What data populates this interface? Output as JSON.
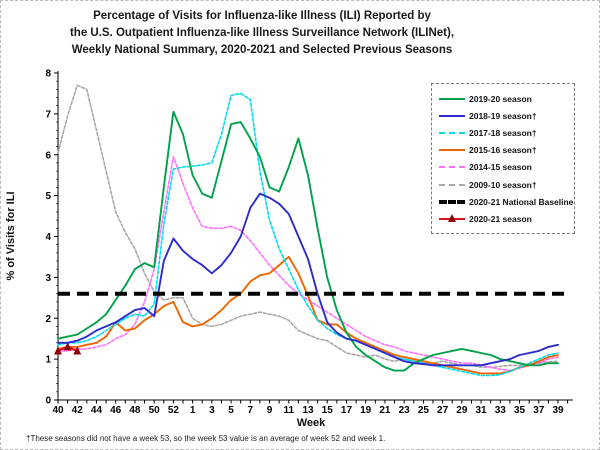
{
  "title": {
    "line1": "Percentage of Visits for Influenza-like Illness (ILI) Reported by",
    "line2": "the U.S. Outpatient Influenza-like Illness Surveillance Network (ILINet),",
    "line3": "Weekly National Summary, 2020-2021 and Selected Previous Seasons"
  },
  "axes": {
    "x_label": "Week",
    "y_label": "% of Visits for ILI",
    "y_ticks": [
      "0",
      "1",
      "2",
      "3",
      "4",
      "5",
      "6",
      "7",
      "8"
    ],
    "ylim": [
      0,
      8
    ],
    "x_tick_labels": [
      "40",
      "42",
      "44",
      "46",
      "48",
      "50",
      "52",
      "1",
      "3",
      "5",
      "7",
      "9",
      "11",
      "13",
      "15",
      "17",
      "19",
      "21",
      "23",
      "25",
      "27",
      "29",
      "31",
      "33",
      "35",
      "37",
      "39"
    ]
  },
  "footnote": "†These seasons did not have a week 53, so the week 53 value is an average of week 52 and week 1.",
  "chart_data": {
    "type": "line",
    "x_unit": "MMWR week (week 40 of first year through week 39 of following year)",
    "weeks": [
      40,
      41,
      42,
      43,
      44,
      45,
      46,
      47,
      48,
      49,
      50,
      51,
      52,
      53,
      1,
      2,
      3,
      4,
      5,
      6,
      7,
      8,
      9,
      10,
      11,
      12,
      13,
      14,
      15,
      16,
      17,
      18,
      19,
      20,
      21,
      22,
      23,
      24,
      25,
      26,
      27,
      28,
      29,
      30,
      31,
      32,
      33,
      34,
      35,
      36,
      37,
      38,
      39
    ],
    "grid": false,
    "legend_position": "upper right",
    "baseline": {
      "label": "2020-21 National Baseline",
      "value": 2.6,
      "color": "#000000"
    },
    "series": [
      {
        "name": "2019-20 season",
        "color": "#00A14B",
        "line": "solid",
        "marker": "none",
        "values": [
          1.5,
          1.55,
          1.6,
          1.75,
          1.9,
          2.1,
          2.45,
          2.8,
          3.2,
          3.35,
          3.25,
          5.2,
          7.05,
          6.5,
          5.5,
          5.05,
          4.95,
          5.85,
          6.75,
          6.8,
          6.4,
          5.95,
          5.2,
          5.1,
          5.7,
          6.4,
          5.5,
          4.2,
          3.0,
          2.2,
          1.65,
          1.3,
          1.1,
          0.95,
          0.8,
          0.72,
          0.72,
          0.9,
          1.0,
          1.1,
          1.15,
          1.2,
          1.25,
          1.2,
          1.15,
          1.1,
          1.0,
          0.95,
          0.9,
          0.85,
          0.85,
          0.9,
          0.9
        ]
      },
      {
        "name": "2018-19 season†",
        "color": "#2B2BCC",
        "line": "solid",
        "marker": "none",
        "values": [
          1.4,
          1.4,
          1.45,
          1.55,
          1.7,
          1.8,
          1.9,
          2.05,
          2.2,
          2.25,
          2.05,
          3.4,
          3.95,
          3.65,
          3.45,
          3.3,
          3.1,
          3.3,
          3.6,
          4.0,
          4.7,
          5.05,
          4.95,
          4.8,
          4.55,
          4.0,
          3.45,
          2.6,
          1.9,
          1.65,
          1.5,
          1.45,
          1.35,
          1.25,
          1.15,
          1.05,
          0.95,
          0.9,
          0.88,
          0.85,
          0.85,
          0.85,
          0.85,
          0.85,
          0.85,
          0.9,
          0.95,
          1.0,
          1.1,
          1.15,
          1.2,
          1.3,
          1.35
        ]
      },
      {
        "name": "2017-18 season†",
        "color": "#00DDEE",
        "line": "dotted",
        "marker": "none",
        "values": [
          1.35,
          1.4,
          1.4,
          1.45,
          1.55,
          1.7,
          1.85,
          2.0,
          2.1,
          2.05,
          2.35,
          4.3,
          5.65,
          5.7,
          5.72,
          5.75,
          5.8,
          6.5,
          7.45,
          7.5,
          7.35,
          5.6,
          4.4,
          3.7,
          3.2,
          2.7,
          2.3,
          1.95,
          1.75,
          1.6,
          1.5,
          1.45,
          1.35,
          1.25,
          1.15,
          1.05,
          1.0,
          0.95,
          0.9,
          0.85,
          0.8,
          0.75,
          0.7,
          0.65,
          0.6,
          0.6,
          0.62,
          0.7,
          0.8,
          0.9,
          1.0,
          1.1,
          1.15
        ]
      },
      {
        "name": "2015-16 season†",
        "color": "#EE6600",
        "line": "solid",
        "marker": "none",
        "values": [
          1.25,
          1.3,
          1.3,
          1.35,
          1.4,
          1.55,
          1.9,
          1.7,
          1.75,
          1.95,
          2.1,
          2.3,
          2.4,
          1.9,
          1.8,
          1.85,
          2.0,
          2.2,
          2.45,
          2.6,
          2.9,
          3.05,
          3.1,
          3.3,
          3.5,
          3.1,
          2.55,
          1.95,
          1.85,
          1.85,
          1.65,
          1.5,
          1.4,
          1.3,
          1.2,
          1.1,
          1.05,
          1.0,
          0.95,
          0.9,
          0.85,
          0.8,
          0.75,
          0.7,
          0.65,
          0.65,
          0.65,
          0.7,
          0.8,
          0.85,
          0.95,
          1.05,
          1.1
        ]
      },
      {
        "name": "2014-15 season",
        "color": "#FF70FF",
        "line": "dotted",
        "marker": "none",
        "values": [
          1.2,
          1.2,
          1.25,
          1.25,
          1.3,
          1.35,
          1.5,
          1.6,
          1.85,
          2.4,
          3.2,
          4.6,
          5.95,
          5.3,
          4.7,
          4.25,
          4.2,
          4.2,
          4.25,
          4.15,
          3.9,
          3.6,
          3.3,
          3.05,
          2.8,
          2.6,
          2.45,
          2.3,
          2.15,
          2.0,
          1.85,
          1.7,
          1.55,
          1.45,
          1.35,
          1.3,
          1.2,
          1.15,
          1.1,
          1.05,
          1.0,
          0.95,
          0.9,
          0.9,
          0.85,
          0.8,
          0.75,
          0.72,
          0.78,
          0.85,
          0.9,
          1.0,
          1.05
        ]
      },
      {
        "name": "2009-10 season†",
        "color": "#A8A8A8",
        "line": "dotted",
        "marker": "none",
        "values": [
          6.05,
          6.95,
          7.7,
          7.6,
          6.6,
          5.6,
          4.6,
          4.1,
          3.7,
          3.1,
          2.65,
          2.45,
          2.5,
          2.5,
          2.0,
          1.85,
          1.8,
          1.85,
          1.95,
          2.05,
          2.1,
          2.15,
          2.1,
          2.05,
          1.95,
          1.7,
          1.6,
          1.5,
          1.45,
          1.3,
          1.15,
          1.1,
          1.05,
          1.1,
          1.0,
          0.95,
          1.0,
          0.95,
          0.9,
          0.9,
          0.95,
          0.9,
          0.85,
          0.85,
          0.8,
          0.8,
          0.82,
          0.85,
          0.85,
          0.88,
          0.9,
          0.93,
          0.95
        ]
      },
      {
        "name": "2020-21 season",
        "color": "#E01020",
        "line": "solid",
        "marker": "triangle",
        "marker_color": "#8B0000",
        "values": [
          1.2,
          1.3,
          1.2
        ]
      }
    ]
  }
}
